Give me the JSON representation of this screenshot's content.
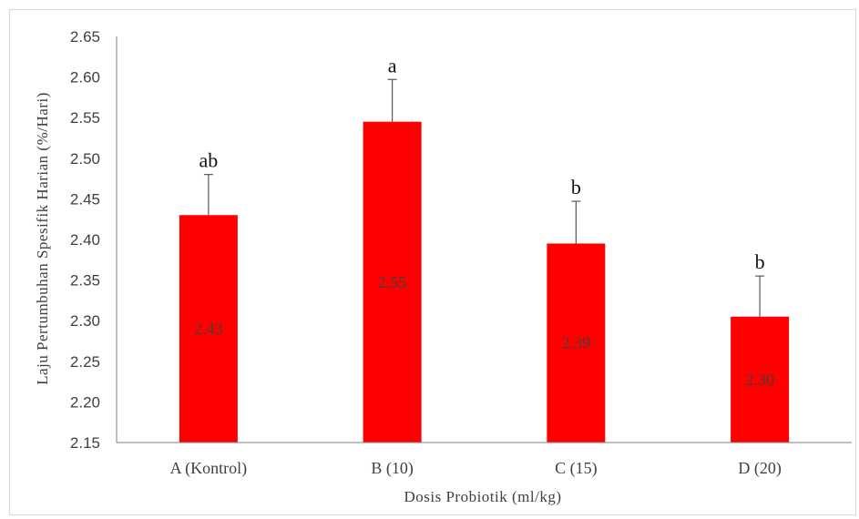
{
  "chart_data": {
    "type": "bar",
    "title": "",
    "xlabel": "Dosis Probiotik (ml/kg)",
    "ylabel": "Laju Pertumbuhan Spesifik Harian (%/Hari)",
    "ylim": [
      2.15,
      2.65
    ],
    "ytick_step": 0.05,
    "yticks": [
      "2.15",
      "2.20",
      "2.25",
      "2.30",
      "2.35",
      "2.40",
      "2.45",
      "2.50",
      "2.55",
      "2.60",
      "2.65"
    ],
    "categories": [
      "A (Kontrol)",
      "B (10)",
      "C (15)",
      "D (20)"
    ],
    "values": [
      2.43,
      2.545,
      2.395,
      2.305
    ],
    "data_labels": [
      "2.43",
      "2.55",
      "2.39",
      "2.30"
    ],
    "error_upper": [
      0.05,
      0.052,
      0.052,
      0.05
    ],
    "significance_labels": [
      "ab",
      "a",
      "b",
      "b"
    ],
    "bar_color": "#ff0000",
    "grid": false,
    "legend": "none"
  }
}
